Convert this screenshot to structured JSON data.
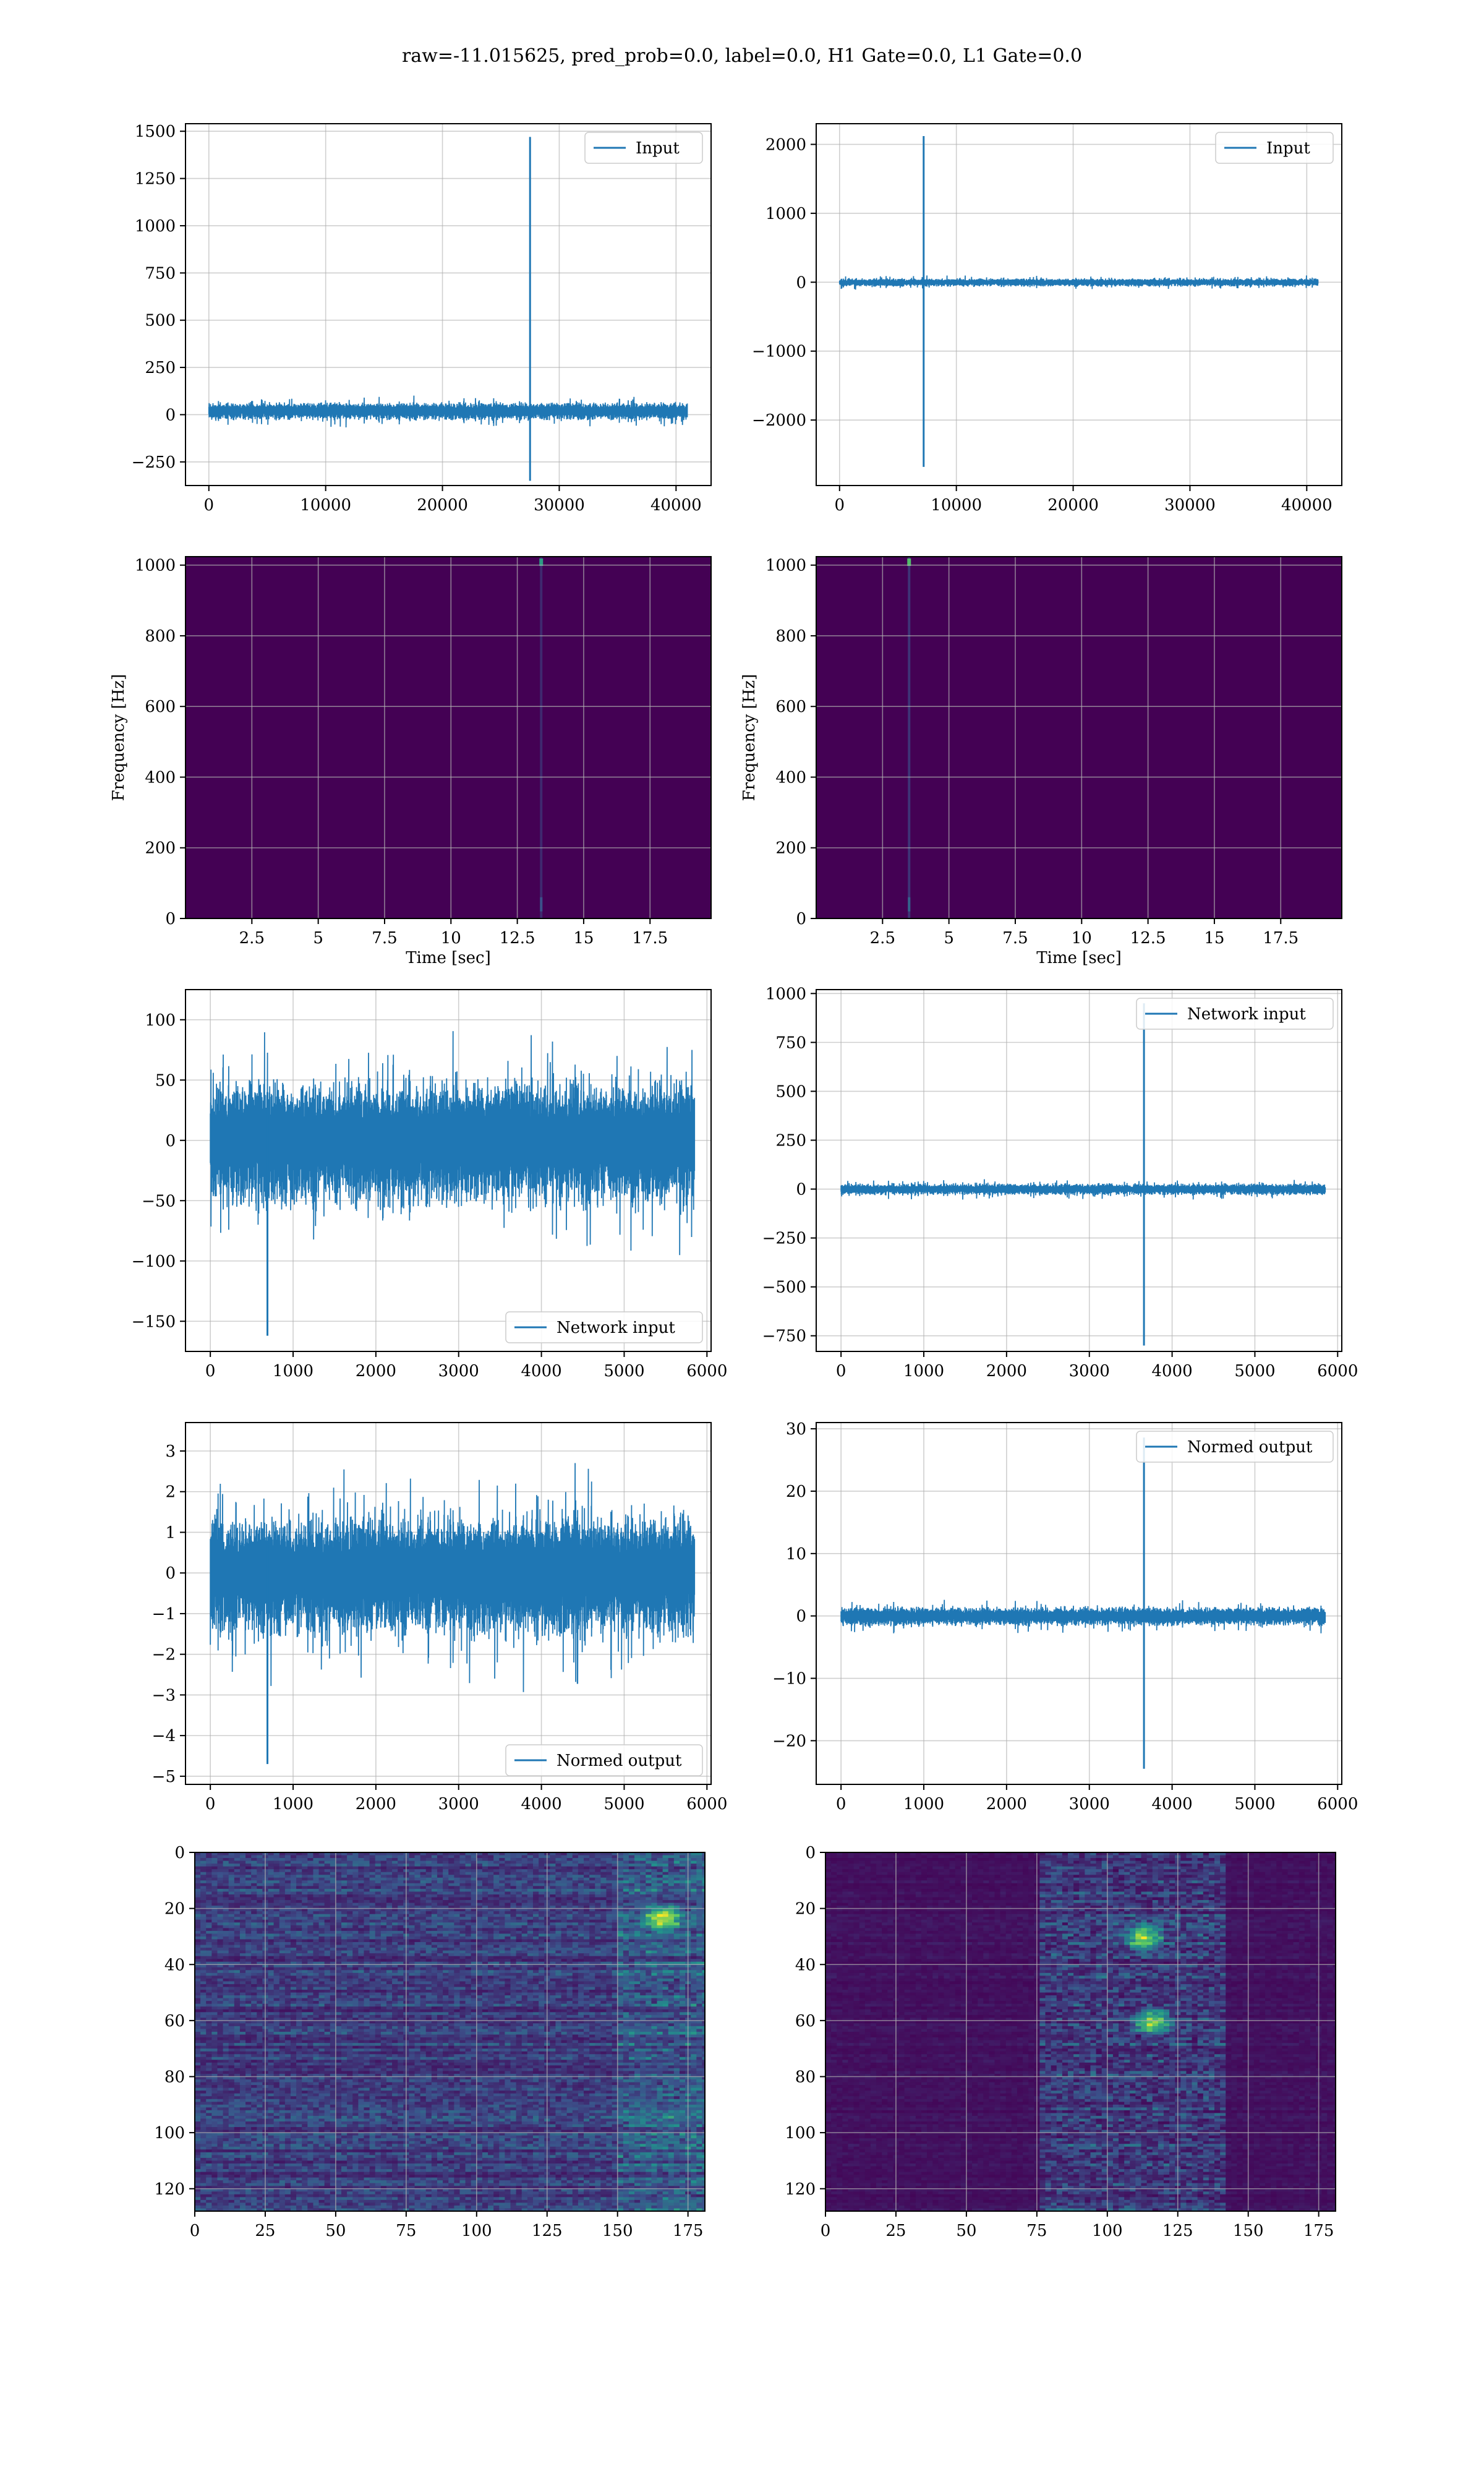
{
  "figure": {
    "suptitle": "raw=-11.015625, pred_prob=0.0, label=0.0, H1 Gate=0.0, L1 Gate=0.0",
    "line_color": "#1f77b4",
    "heatmap_colors": [
      "#440154",
      "#3b528b",
      "#21918c",
      "#5ec962",
      "#fde725"
    ],
    "grid_color": "#b0b0b0"
  },
  "chart_data": [
    {
      "id": "input-h1",
      "type": "line",
      "legend": "upper right",
      "xlim": [
        -2000,
        43000
      ],
      "ylim": [
        -375,
        1540
      ],
      "xticks": [
        0,
        10000,
        20000,
        30000,
        40000
      ],
      "yticks": [
        -250,
        0,
        250,
        500,
        750,
        1000,
        1250,
        1500
      ],
      "series": [
        {
          "name": "Input",
          "x_range": [
            0,
            40960
          ],
          "noise_amplitude": 40,
          "bias": 20,
          "spikes": [
            {
              "x": 27500,
              "max": 1470,
              "min": -350
            }
          ]
        }
      ]
    },
    {
      "id": "input-l1",
      "type": "line",
      "legend": "upper right",
      "xlim": [
        -2000,
        43000
      ],
      "ylim": [
        -2950,
        2300
      ],
      "xticks": [
        0,
        10000,
        20000,
        30000,
        40000
      ],
      "yticks": [
        -2000,
        -1000,
        0,
        1000,
        2000
      ],
      "series": [
        {
          "name": "Input",
          "x_range": [
            0,
            40960
          ],
          "noise_amplitude": 50,
          "bias": 0,
          "spikes": [
            {
              "x": 7200,
              "max": 2120,
              "min": -2680
            }
          ]
        }
      ]
    },
    {
      "id": "spectrogram-h1",
      "type": "heatmap",
      "xlim": [
        0,
        19.8
      ],
      "ylim": [
        0,
        1024
      ],
      "xticks": [
        2.5,
        5.0,
        7.5,
        10.0,
        12.5,
        15.0,
        17.5
      ],
      "yticks": [
        0,
        200,
        400,
        600,
        800,
        1000
      ],
      "xlabel": "Time [sec]",
      "ylabel": "Frequency [Hz]",
      "features": [
        {
          "t": 13.4,
          "f": 1010,
          "intensity": 0.55
        }
      ]
    },
    {
      "id": "spectrogram-l1",
      "type": "heatmap",
      "xlim": [
        0,
        19.8
      ],
      "ylim": [
        0,
        1024
      ],
      "xticks": [
        2.5,
        5.0,
        7.5,
        10.0,
        12.5,
        15.0,
        17.5
      ],
      "yticks": [
        0,
        200,
        400,
        600,
        800,
        1000
      ],
      "xlabel": "Time [sec]",
      "ylabel": "Frequency [Hz]",
      "features": [
        {
          "t": 3.5,
          "f": 1010,
          "intensity": 0.7
        }
      ]
    },
    {
      "id": "network-input-h1",
      "type": "line",
      "legend": "lower right",
      "xlim": [
        -300,
        6050
      ],
      "ylim": [
        -175,
        125
      ],
      "xticks": [
        0,
        1000,
        2000,
        3000,
        4000,
        5000,
        6000
      ],
      "yticks": [
        -150,
        -100,
        -50,
        0,
        50,
        100
      ],
      "series": [
        {
          "name": "Network input",
          "x_range": [
            0,
            5850
          ],
          "noise_amplitude": 45,
          "bias": 0,
          "spikes": [
            {
              "x": 690,
              "max": 40,
              "min": -162
            }
          ]
        }
      ]
    },
    {
      "id": "network-input-l1",
      "type": "line",
      "legend": "upper right",
      "xlim": [
        -300,
        6050
      ],
      "ylim": [
        -830,
        1020
      ],
      "xticks": [
        0,
        1000,
        2000,
        3000,
        4000,
        5000,
        6000
      ],
      "yticks": [
        -750,
        -500,
        -250,
        0,
        250,
        500,
        750,
        1000
      ],
      "series": [
        {
          "name": "Network input",
          "x_range": [
            0,
            5850
          ],
          "noise_amplitude": 25,
          "bias": 0,
          "spikes": [
            {
              "x": 3660,
              "max": 950,
              "min": -800
            }
          ]
        }
      ]
    },
    {
      "id": "normed-output-h1",
      "type": "line",
      "legend": "lower right",
      "xlim": [
        -300,
        6050
      ],
      "ylim": [
        -5.2,
        3.7
      ],
      "xticks": [
        0,
        1000,
        2000,
        3000,
        4000,
        5000,
        6000
      ],
      "yticks": [
        -5,
        -4,
        -3,
        -2,
        -1,
        0,
        1,
        2,
        3
      ],
      "series": [
        {
          "name": "Normed output",
          "x_range": [
            0,
            5850
          ],
          "noise_amplitude": 1.3,
          "bias": 0,
          "spikes": [
            {
              "x": 690,
              "max": 0.8,
              "min": -4.7
            }
          ]
        }
      ]
    },
    {
      "id": "normed-output-l1",
      "type": "line",
      "legend": "upper right",
      "xlim": [
        -300,
        6050
      ],
      "ylim": [
        -27,
        31
      ],
      "xticks": [
        0,
        1000,
        2000,
        3000,
        4000,
        5000,
        6000
      ],
      "yticks": [
        -20,
        -10,
        0,
        10,
        20,
        30
      ],
      "series": [
        {
          "name": "Normed output",
          "x_range": [
            0,
            5850
          ],
          "noise_amplitude": 1.3,
          "bias": 0,
          "spikes": [
            {
              "x": 3660,
              "max": 28.6,
              "min": -24.5
            }
          ]
        }
      ]
    },
    {
      "id": "feature-map-h1",
      "type": "heatmap",
      "xlim": [
        0,
        181
      ],
      "ylim": [
        128,
        0
      ],
      "xticks": [
        0,
        25,
        50,
        75,
        100,
        125,
        150,
        175
      ],
      "yticks": [
        0,
        20,
        40,
        60,
        80,
        100,
        120
      ],
      "activity": {
        "base": 0.18,
        "bright_columns": [
          [
            150,
            181
          ]
        ],
        "hotspots": [
          [
            165,
            23
          ]
        ]
      }
    },
    {
      "id": "feature-map-l1",
      "type": "heatmap",
      "xlim": [
        0,
        181
      ],
      "ylim": [
        128,
        0
      ],
      "xticks": [
        0,
        25,
        50,
        75,
        100,
        125,
        150,
        175
      ],
      "yticks": [
        0,
        20,
        40,
        60,
        80,
        100,
        120
      ],
      "activity": {
        "base": 0.05,
        "bright_columns": [
          [
            75,
            140
          ]
        ],
        "hotspots": [
          [
            115,
            60
          ],
          [
            112,
            30
          ]
        ]
      }
    }
  ]
}
